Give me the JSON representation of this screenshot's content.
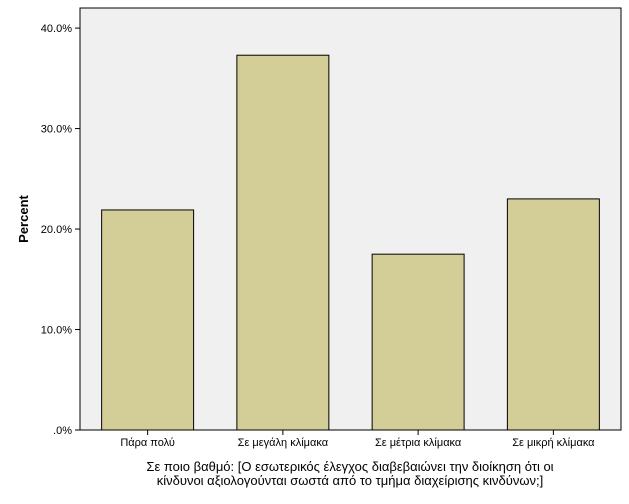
{
  "chart_data": {
    "type": "bar",
    "categories": [
      "Πάρα πολύ",
      "Σε μεγάλη κλίμακα",
      "Σε μέτρια κλίμακα",
      "Σε μικρή κλίμακα"
    ],
    "values": [
      21.9,
      37.3,
      17.5,
      23.0
    ],
    "title": "",
    "xlabel_lines": [
      "Σε ποιο βαθμό:  [Ο εσωτερικός έλεγχος διαβεβαιώνει την διοίκηση ότι οι",
      "κίνδυνοι αξιολογούνται σωστά από το τμήμα διαχείρισης κινδύνων;]"
    ],
    "ylabel": "Percent",
    "ylim": [
      0,
      42.0
    ],
    "yticks": [
      0,
      10,
      20,
      30,
      40
    ],
    "ytick_labels": [
      ".0%",
      "10.0%",
      "20.0%",
      "30.0%",
      "40.0%"
    ],
    "grid": false,
    "colors": {
      "bar_fill": "#d3ce98",
      "bar_stroke": "#000000",
      "plot_background": "#f0f0f0",
      "axis": "#000000"
    }
  }
}
